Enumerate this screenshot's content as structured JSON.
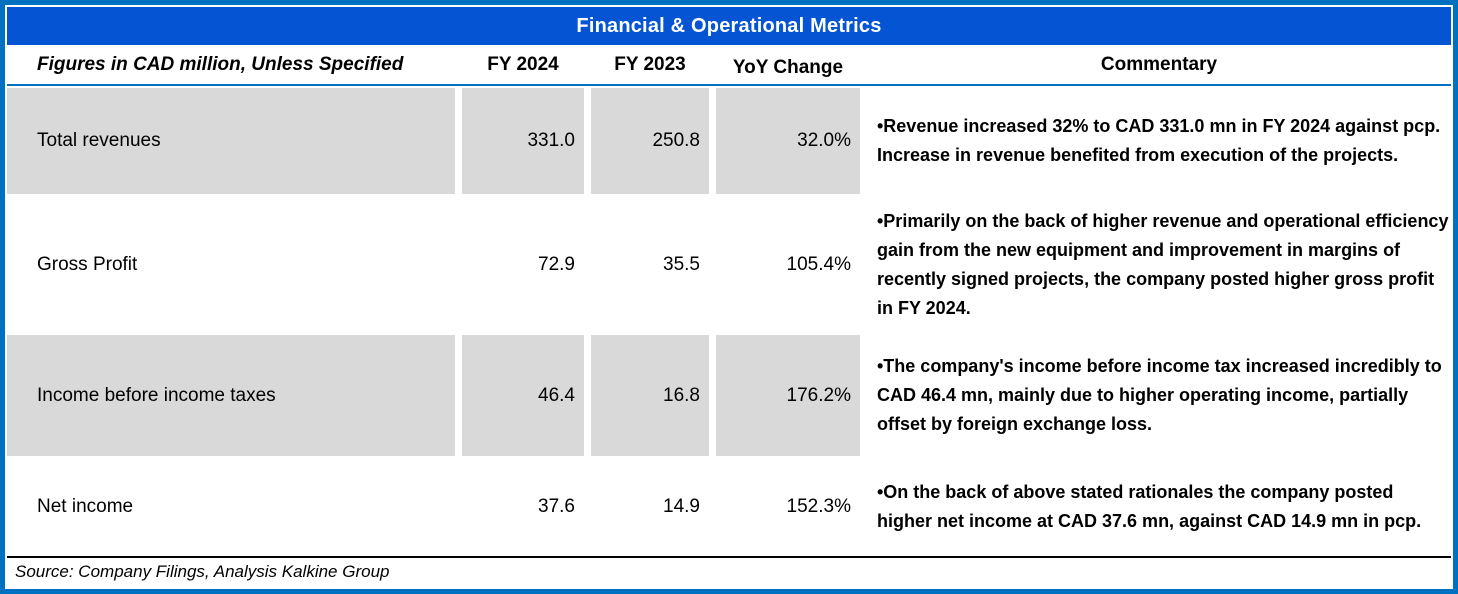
{
  "title": "Financial & Operational Metrics",
  "table": {
    "header": {
      "label": "Figures in CAD million, Unless Specified",
      "col_fy2024": "FY 2024",
      "col_fy2023": "FY 2023",
      "col_yoy": "YoY Change",
      "col_commentary": "Commentary"
    },
    "rows": [
      {
        "label": "Total revenues",
        "fy2024": "331.0",
        "fy2023": "250.8",
        "yoy": "32.0%",
        "commentary": "•Revenue increased 32% to CAD 331.0 mn in FY 2024 against pcp. Increase in revenue benefited from execution of the projects."
      },
      {
        "label": "Gross Profit",
        "fy2024": "72.9",
        "fy2023": "35.5",
        "yoy": "105.4%",
        "commentary": "•Primarily on the back of higher revenue and operational efficiency gain from the new equipment and improvement in margins of recently signed projects, the company posted higher gross profit in FY 2024."
      },
      {
        "label": "Income before income taxes",
        "fy2024": "46.4",
        "fy2023": "16.8",
        "yoy": "176.2%",
        "commentary": "•The company's income before income tax increased incredibly to CAD 46.4 mn, mainly due to higher operating income, partially offset by foreign exchange loss."
      },
      {
        "label": "Net income",
        "fy2024": "37.6",
        "fy2023": "14.9",
        "yoy": "152.3%",
        "commentary": "•On the back of above stated rationales the company posted higher net income at CAD 37.6 mn, against CAD 14.9 mn in pcp."
      }
    ]
  },
  "footer": {
    "source": "Source: Company Filings, Analysis Kalkine Group"
  },
  "colors": {
    "outer_border": "#0070C0",
    "title_bar": "#0454D4",
    "header_rule": "#0070C0",
    "shaded_cell": "#D9D9D9",
    "title_text": "#FFFFFF",
    "body_text": "#000000"
  }
}
